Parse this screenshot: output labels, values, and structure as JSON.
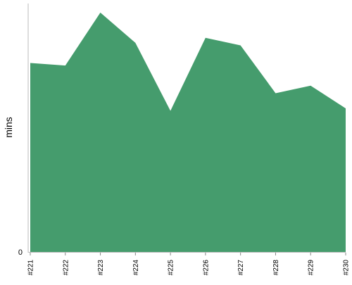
{
  "chart_data": {
    "type": "area",
    "title": "",
    "xlabel": "",
    "ylabel": "mins",
    "categories": [
      "#221",
      "#222",
      "#223",
      "#224",
      "#225",
      "#226",
      "#227",
      "#228",
      "#229",
      "#230"
    ],
    "series": [
      {
        "values": [
          75,
          74,
          95,
          83,
          56,
          85,
          82,
          63,
          66,
          57
        ]
      }
    ],
    "y_tick_labels": [
      "0"
    ],
    "ylim": [
      0,
      100
    ],
    "grid": false,
    "legend": "none",
    "colors": {
      "area": "#459c6d",
      "axis": "#bbbbbb",
      "tick": "#888888"
    }
  }
}
